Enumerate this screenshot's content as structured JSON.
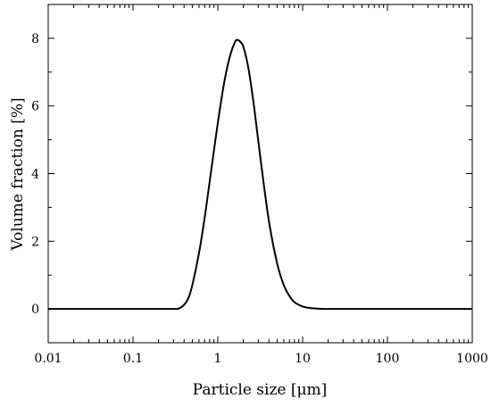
{
  "chart_data": {
    "type": "line",
    "xlabel": "Particle size [μm]",
    "ylabel": "Volume fraction [%]",
    "xscale": "log",
    "xlim": [
      0.01,
      1000
    ],
    "ylim": [
      -1,
      9
    ],
    "grid": false,
    "x_ticks": [
      0.01,
      0.1,
      1,
      10,
      100,
      1000
    ],
    "x_tick_labels": [
      "0.01",
      "0.1",
      "1",
      "10",
      "100",
      "1000"
    ],
    "y_ticks": [
      0,
      2,
      4,
      6,
      8
    ],
    "y_tick_labels": [
      "0",
      "2",
      "4",
      "6",
      "8"
    ],
    "series": [
      {
        "color": "#000000",
        "x": [
          0.01,
          0.1,
          0.3,
          0.35,
          0.4,
          0.45,
          0.5,
          0.6,
          0.7,
          0.8,
          1.0,
          1.2,
          1.4,
          1.6,
          1.7,
          1.8,
          2.0,
          2.3,
          2.7,
          3.2,
          4.0,
          5.0,
          6.0,
          7.0,
          8.0,
          10.0,
          12.0,
          15.0,
          20.0,
          100.0,
          1000.0
        ],
        "y": [
          0,
          0,
          0,
          0.02,
          0.12,
          0.32,
          0.7,
          1.65,
          2.7,
          3.75,
          5.5,
          6.75,
          7.5,
          7.9,
          7.95,
          7.92,
          7.75,
          7.1,
          5.9,
          4.4,
          2.6,
          1.35,
          0.7,
          0.38,
          0.2,
          0.07,
          0.03,
          0.01,
          0,
          0,
          0
        ]
      }
    ]
  }
}
